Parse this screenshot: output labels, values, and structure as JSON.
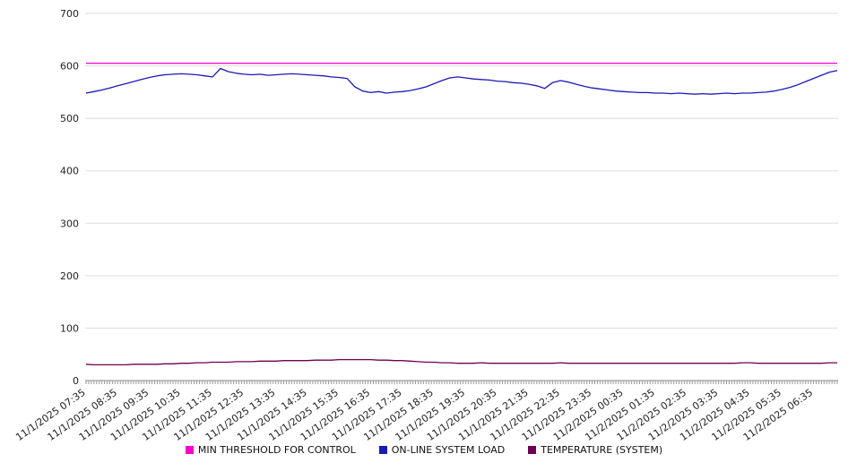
{
  "chart_data": {
    "type": "line",
    "title": "",
    "xlabel": "",
    "ylabel": "",
    "ylim": [
      0,
      700
    ],
    "yticks": [
      0,
      100,
      200,
      300,
      400,
      500,
      600,
      700
    ],
    "grid": true,
    "legend_position": "bottom",
    "points_per_hour": 4,
    "minor_ticks_per_point": 3,
    "x_labels": [
      "11/1/2025 07:35",
      "11/1/2025 08:35",
      "11/1/2025 09:35",
      "11/1/2025 10:35",
      "11/1/2025 11:35",
      "11/1/2025 12:35",
      "11/1/2025 13:35",
      "11/1/2025 14:35",
      "11/1/2025 15:35",
      "11/1/2025 16:35",
      "11/1/2025 17:35",
      "11/1/2025 18:35",
      "11/1/2025 19:35",
      "11/1/2025 20:35",
      "11/1/2025 21:35",
      "11/1/2025 22:35",
      "11/1/2025 23:35",
      "11/2/2025 00:35",
      "11/2/2025 01:35",
      "11/2/2025 02:35",
      "11/2/2025 03:35",
      "11/2/2025 04:35",
      "11/2/2025 05:35",
      "11/2/2025 06:35"
    ],
    "series": [
      {
        "name": "MIN THRESHOLD FOR CONTROL",
        "color": "#ff00cc",
        "constant": 605
      },
      {
        "name": "ON-LINE SYSTEM LOAD",
        "color": "#1a1ab8",
        "values": [
          548,
          551,
          554,
          558,
          562,
          566,
          570,
          574,
          578,
          581,
          583,
          584,
          585,
          584,
          583,
          581,
          579,
          595,
          589,
          586,
          584,
          583,
          584,
          582,
          583,
          584,
          585,
          584,
          583,
          582,
          581,
          579,
          578,
          576,
          560,
          552,
          549,
          551,
          548,
          550,
          551,
          553,
          556,
          560,
          566,
          572,
          577,
          579,
          577,
          575,
          574,
          573,
          571,
          570,
          568,
          567,
          565,
          562,
          557,
          568,
          572,
          569,
          565,
          561,
          558,
          556,
          554,
          552,
          551,
          550,
          549,
          549,
          548,
          548,
          547,
          548,
          547,
          546,
          547,
          546,
          547,
          548,
          547,
          548,
          548,
          549,
          550,
          552,
          555,
          559,
          564,
          570,
          576,
          582,
          588,
          591
        ]
      },
      {
        "name": "TEMPERATURE (SYSTEM)",
        "color": "#6e0051",
        "values": [
          31,
          30,
          30,
          30,
          30,
          30,
          31,
          31,
          31,
          31,
          32,
          32,
          33,
          33,
          34,
          34,
          35,
          35,
          35,
          36,
          36,
          36,
          37,
          37,
          37,
          38,
          38,
          38,
          38,
          39,
          39,
          39,
          40,
          40,
          40,
          40,
          40,
          39,
          39,
          38,
          38,
          37,
          36,
          35,
          35,
          34,
          34,
          33,
          33,
          33,
          34,
          33,
          33,
          33,
          33,
          33,
          33,
          33,
          33,
          33,
          34,
          33,
          33,
          33,
          33,
          33,
          33,
          33,
          33,
          33,
          33,
          33,
          33,
          33,
          33,
          33,
          33,
          33,
          33,
          33,
          33,
          33,
          33,
          34,
          34,
          33,
          33,
          33,
          33,
          33,
          33,
          33,
          33,
          33,
          34,
          34
        ]
      }
    ]
  }
}
